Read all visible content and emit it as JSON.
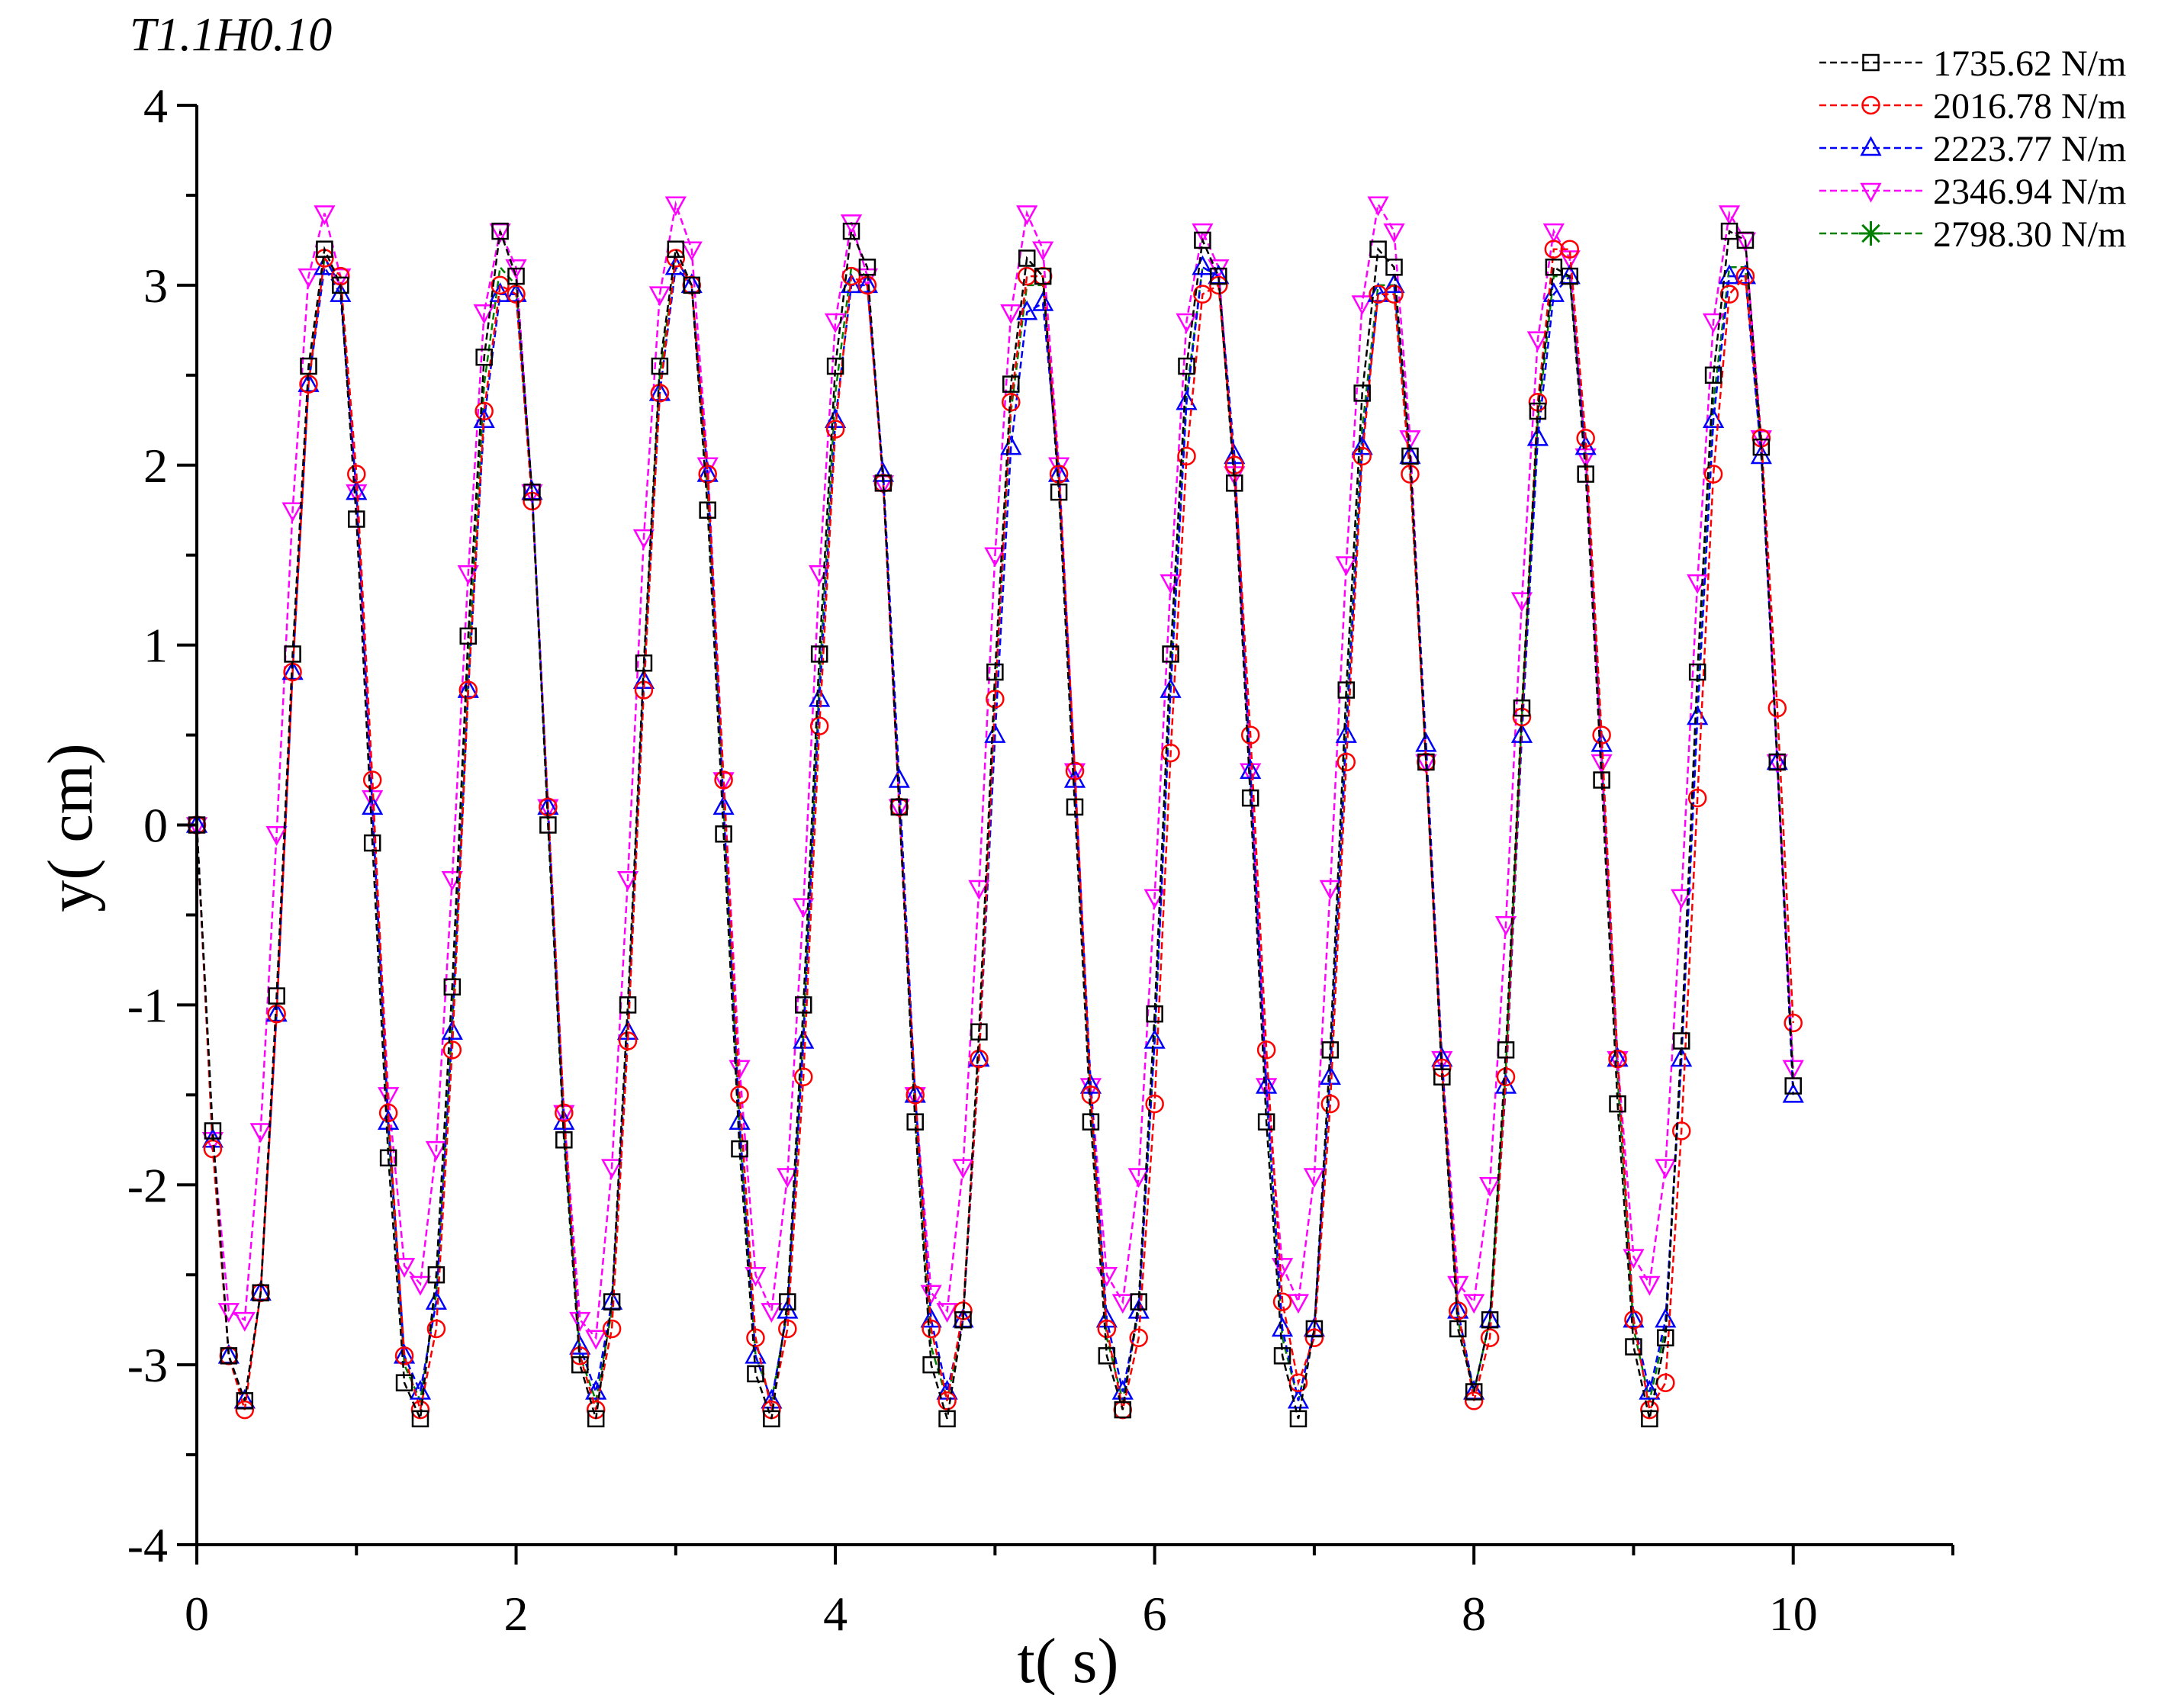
{
  "chart_data": {
    "type": "line",
    "title": "T1.1H0.10",
    "xlabel": "t( s)",
    "ylabel": "y( cm)",
    "xlim": [
      0,
      11
    ],
    "ylim": [
      -4,
      4
    ],
    "x_ticks": [
      0,
      2,
      4,
      6,
      8,
      10
    ],
    "y_ticks": [
      -4,
      -3,
      -2,
      -1,
      0,
      1,
      2,
      3,
      4
    ],
    "x_tick_labels": [
      "0",
      "2",
      "4",
      "6",
      "8",
      "10"
    ],
    "y_tick_labels": [
      "-4",
      "-3",
      "-2",
      "-1",
      "0",
      "1",
      "2",
      "3",
      "4"
    ],
    "grid": false,
    "legend_position": "top-right",
    "x": [
      0.0,
      0.1,
      0.2,
      0.3,
      0.4,
      0.5,
      0.6,
      0.7,
      0.8,
      0.9,
      1.0,
      1.1,
      1.2,
      1.3,
      1.4,
      1.5,
      1.6,
      1.7,
      1.8,
      1.9,
      2.0,
      2.1,
      2.2,
      2.3,
      2.4,
      2.5,
      2.6,
      2.7,
      2.8,
      2.9,
      3.0,
      3.1,
      3.2,
      3.3,
      3.4,
      3.5,
      3.6,
      3.7,
      3.8,
      3.9,
      4.0,
      4.1,
      4.2,
      4.3,
      4.4,
      4.5,
      4.6,
      4.7,
      4.8,
      4.9,
      5.0,
      5.1,
      5.2,
      5.3,
      5.4,
      5.5,
      5.6,
      5.7,
      5.8,
      5.9,
      6.0,
      6.1,
      6.2,
      6.3,
      6.4,
      6.5,
      6.6,
      6.7,
      6.8,
      6.9,
      7.0,
      7.1,
      7.2,
      7.3,
      7.4,
      7.5,
      7.6,
      7.7,
      7.8,
      7.9,
      8.0,
      8.1,
      8.2,
      8.3,
      8.4,
      8.5,
      8.6,
      8.7,
      8.8,
      8.9,
      9.0,
      9.1,
      9.2,
      9.3,
      9.4,
      9.5,
      9.6,
      9.7,
      9.8,
      9.9,
      10.0
    ],
    "series": [
      {
        "name": "1735.62 N/m",
        "color": "#000000",
        "marker": "square",
        "values": [
          0.0,
          -1.7,
          -2.95,
          -3.2,
          -2.6,
          -0.95,
          0.95,
          2.55,
          3.2,
          3.0,
          1.7,
          -0.1,
          -1.85,
          -3.1,
          -3.3,
          -2.5,
          -0.9,
          1.05,
          2.6,
          3.3,
          3.05,
          1.85,
          0.0,
          -1.75,
          -3.0,
          -3.3,
          -2.65,
          -1.0,
          0.9,
          2.55,
          3.2,
          3.0,
          1.75,
          -0.05,
          -1.8,
          -3.05,
          -3.3,
          -2.65,
          -1.0,
          0.95,
          2.55,
          3.3,
          3.1,
          1.9,
          0.1,
          -1.65,
          -3.0,
          -3.3,
          -2.75,
          -1.15,
          0.85,
          2.45,
          3.15,
          3.05,
          1.85,
          0.1,
          -1.65,
          -2.95,
          -3.25,
          -2.65,
          -1.05,
          0.95,
          2.55,
          3.25,
          3.05,
          1.9,
          0.15,
          -1.65,
          -2.95,
          -3.3,
          -2.8,
          -1.25,
          0.75,
          2.4,
          3.2,
          3.1,
          2.05,
          0.35,
          -1.4,
          -2.8,
          -3.15,
          -2.75,
          -1.25,
          0.65,
          2.3,
          3.1,
          3.05,
          1.95,
          0.25,
          -1.55,
          -2.9,
          -3.3,
          -2.85,
          -1.2,
          0.85,
          2.5,
          3.3,
          3.25,
          2.1,
          0.35,
          -1.45
        ]
      },
      {
        "name": "2016.78 N/m",
        "color": "#ff0000",
        "marker": "circle",
        "values": [
          0.0,
          -1.8,
          -2.95,
          -3.25,
          -2.6,
          -1.05,
          0.85,
          2.45,
          3.15,
          3.05,
          1.95,
          0.25,
          -1.6,
          -2.95,
          -3.25,
          -2.8,
          -1.25,
          0.75,
          2.3,
          3.0,
          2.95,
          1.8,
          0.1,
          -1.6,
          -2.95,
          -3.25,
          -2.8,
          -1.2,
          0.75,
          2.4,
          3.15,
          3.0,
          1.95,
          0.25,
          -1.5,
          -2.85,
          -3.25,
          -2.8,
          -1.4,
          0.55,
          2.2,
          3.05,
          3.0,
          1.9,
          0.1,
          -1.5,
          -2.8,
          -3.2,
          -2.7,
          -1.3,
          0.7,
          2.35,
          3.05,
          3.05,
          1.95,
          0.3,
          -1.5,
          -2.8,
          -3.25,
          -2.85,
          -1.55,
          0.4,
          2.05,
          2.95,
          3.0,
          2.0,
          0.5,
          -1.25,
          -2.65,
          -3.1,
          -2.85,
          -1.55,
          0.35,
          2.05,
          2.95,
          2.95,
          1.95,
          0.35,
          -1.35,
          -2.7,
          -3.2,
          -2.85,
          -1.4,
          0.6,
          2.35,
          3.2,
          3.2,
          2.15,
          0.5,
          -1.3,
          -2.75,
          -3.25,
          -3.1,
          -1.7,
          0.15,
          1.95,
          2.95,
          3.05,
          2.15,
          0.65,
          -1.1
        ]
      },
      {
        "name": "2223.77 N/m",
        "color": "#0000ff",
        "marker": "triangle-up",
        "values": [
          0.0,
          -1.75,
          -2.95,
          -3.2,
          -2.6,
          -1.05,
          0.85,
          2.45,
          3.1,
          2.95,
          1.85,
          0.1,
          -1.65,
          -2.95,
          -3.15,
          -2.65,
          -1.15,
          0.75,
          2.25,
          2.95,
          2.95,
          1.85,
          0.1,
          -1.65,
          -2.9,
          -3.15,
          -2.65,
          -1.15,
          0.8,
          2.4,
          3.1,
          3.0,
          1.95,
          0.1,
          -1.65,
          -2.95,
          -3.2,
          -2.7,
          -1.2,
          0.7,
          2.25,
          3.0,
          3.0,
          1.95,
          0.25,
          -1.5,
          -2.75,
          -3.15,
          -2.75,
          -1.3,
          0.5,
          2.1,
          2.85,
          2.9,
          1.95,
          0.25,
          -1.45,
          -2.75,
          -3.15,
          -2.7,
          -1.2,
          0.75,
          2.35,
          3.1,
          3.05,
          2.05,
          0.3,
          -1.45,
          -2.8,
          -3.2,
          -2.8,
          -1.4,
          0.5,
          2.1,
          2.95,
          3.0,
          2.05,
          0.45,
          -1.3,
          -2.7,
          -3.15,
          -2.75,
          -1.45,
          0.5,
          2.15,
          2.95,
          3.05,
          2.1,
          0.45,
          -1.3,
          -2.75,
          -3.15,
          -2.75,
          -1.3,
          0.6,
          2.25,
          3.05,
          3.05,
          2.05,
          0.35,
          -1.5
        ]
      },
      {
        "name": "2346.94 N/m",
        "color": "#ff00ff",
        "marker": "triangle-down",
        "values": [
          0.0,
          -1.75,
          -2.7,
          -2.75,
          -1.7,
          -0.05,
          1.75,
          3.05,
          3.4,
          3.05,
          1.85,
          0.15,
          -1.5,
          -2.45,
          -2.55,
          -1.8,
          -0.3,
          1.4,
          2.85,
          3.3,
          3.1,
          1.85,
          0.1,
          -1.6,
          -2.75,
          -2.85,
          -1.9,
          -0.3,
          1.6,
          2.95,
          3.45,
          3.2,
          2.0,
          0.25,
          -1.35,
          -2.5,
          -2.7,
          -1.95,
          -0.45,
          1.4,
          2.8,
          3.35,
          3.05,
          1.9,
          0.1,
          -1.5,
          -2.6,
          -2.7,
          -1.9,
          -0.35,
          1.5,
          2.85,
          3.4,
          3.2,
          2.0,
          0.3,
          -1.45,
          -2.5,
          -2.65,
          -1.95,
          -0.4,
          1.35,
          2.8,
          3.3,
          3.1,
          1.95,
          0.3,
          -1.45,
          -2.45,
          -2.65,
          -1.95,
          -0.35,
          1.45,
          2.9,
          3.45,
          3.3,
          2.15,
          0.35,
          -1.3,
          -2.55,
          -2.65,
          -2.0,
          -0.55,
          1.25,
          2.7,
          3.3,
          3.15,
          2.05,
          0.35,
          -1.3,
          -2.4,
          -2.55,
          -1.9,
          -0.4,
          1.35,
          2.8,
          3.4,
          3.25,
          2.15,
          0.35,
          -1.35
        ]
      },
      {
        "name": "2798.30 N/m",
        "color": "#008000",
        "marker": "asterisk",
        "values": [
          0.0,
          -1.75,
          -2.95,
          -3.2,
          -2.6,
          -1.0,
          0.9,
          2.5,
          3.15,
          3.0,
          1.85,
          0.1,
          -1.7,
          -3.0,
          -3.2,
          -2.6,
          -1.1,
          0.85,
          2.45,
          3.1,
          3.0,
          1.85,
          0.05,
          -1.7,
          -2.95,
          -3.2,
          -2.7,
          -1.1,
          0.85,
          2.5,
          3.15,
          3.0,
          1.85,
          0.1,
          -1.7,
          -2.95,
          -3.2,
          -2.7,
          -1.15,
          0.8,
          2.4,
          3.1,
          3.05,
          1.9,
          0.15,
          -1.6,
          -2.9,
          -3.2,
          -2.75,
          -1.2,
          0.7,
          2.3,
          3.0,
          3.0,
          1.9,
          0.2,
          -1.55,
          -2.85,
          -3.2,
          -2.7,
          -1.2,
          0.8,
          2.4,
          3.1,
          3.05,
          1.95,
          0.25,
          -1.5,
          -2.85,
          -3.2,
          -2.8,
          -1.35,
          0.6,
          2.2,
          3.0,
          3.0,
          2.0,
          0.35,
          -1.35,
          -2.75,
          -3.15,
          -2.75,
          -1.35,
          0.6,
          2.25,
          3.05,
          3.05,
          2.05,
          0.4,
          -1.4,
          -2.8,
          -3.2,
          -2.8,
          -1.3,
          0.7,
          2.35,
          3.1,
          3.1,
          2.05,
          0.4,
          -1.4
        ]
      }
    ]
  }
}
